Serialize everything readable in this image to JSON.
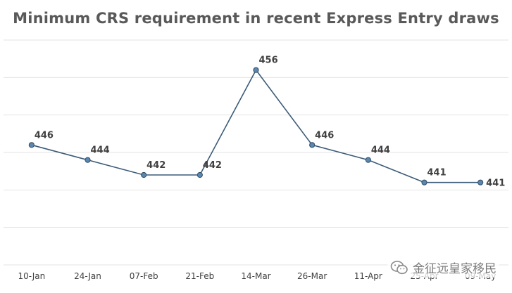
{
  "chart_data": {
    "type": "line",
    "title": "Minimum CRS requirement in recent Express Entry draws",
    "xlabel": "",
    "ylabel": "",
    "categories": [
      "10-Jan",
      "24-Jan",
      "07-Feb",
      "21-Feb",
      "14-Mar",
      "26-Mar",
      "11-Apr",
      "25-Apr",
      "09-May"
    ],
    "series": [
      {
        "name": "Minimum CRS",
        "values": [
          446,
          444,
          442,
          442,
          456,
          446,
          444,
          441,
          441
        ]
      }
    ],
    "ylim": [
      430,
      460
    ],
    "grid": true,
    "legend": "none",
    "colors": {
      "line": "#3b5b78",
      "marker_fill": "#5b86ad",
      "marker_stroke": "#2f4d68",
      "grid": "#e3e3e3"
    }
  },
  "watermark": {
    "icon": "wechat-icon",
    "text": "金征远皇家移民"
  }
}
